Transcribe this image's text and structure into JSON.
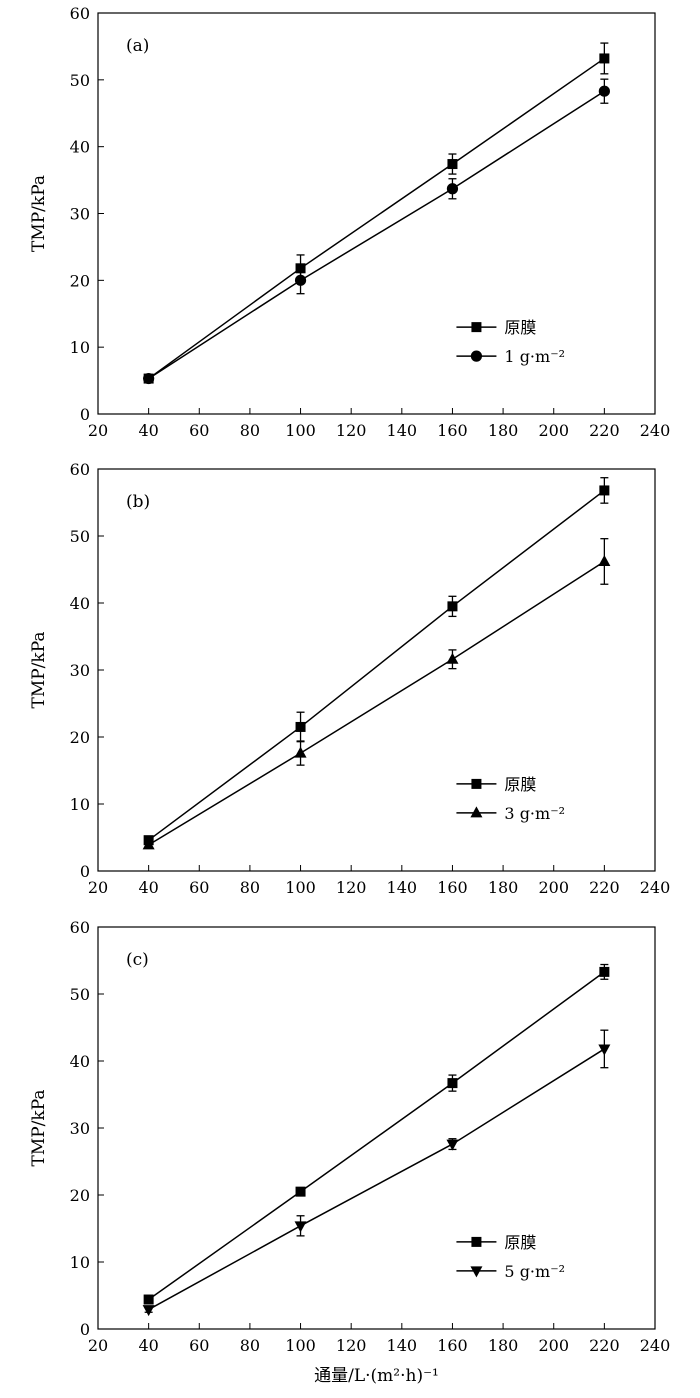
{
  "chart_data": [
    {
      "type": "line",
      "panel_label": "(a)",
      "xlabel": "",
      "ylabel": "TMP/kPa",
      "xlim": [
        20,
        240
      ],
      "ylim": [
        0,
        60
      ],
      "xticks": [
        20,
        40,
        60,
        80,
        100,
        120,
        140,
        160,
        180,
        200,
        220,
        240
      ],
      "yticks": [
        0,
        10,
        20,
        30,
        40,
        50,
        60
      ],
      "x": [
        40,
        100,
        160,
        220
      ],
      "legend_position": "bottom-right",
      "grid": false,
      "series": [
        {
          "name": "原膜",
          "marker": "square",
          "values": [
            5.3,
            21.8,
            37.4,
            53.2
          ],
          "errors": [
            0.5,
            2.0,
            1.5,
            2.3
          ]
        },
        {
          "name": "1 g·m⁻²",
          "marker": "circle",
          "values": [
            5.3,
            20.0,
            33.7,
            48.3
          ],
          "errors": [
            0.4,
            2.0,
            1.5,
            1.8
          ]
        }
      ]
    },
    {
      "type": "line",
      "panel_label": "(b)",
      "xlabel": "",
      "ylabel": "TMP/kPa",
      "xlim": [
        20,
        240
      ],
      "ylim": [
        0,
        60
      ],
      "xticks": [
        20,
        40,
        60,
        80,
        100,
        120,
        140,
        160,
        180,
        200,
        220,
        240
      ],
      "yticks": [
        0,
        10,
        20,
        30,
        40,
        50,
        60
      ],
      "x": [
        40,
        100,
        160,
        220
      ],
      "legend_position": "bottom-right",
      "grid": false,
      "series": [
        {
          "name": "原膜",
          "marker": "square",
          "values": [
            4.6,
            21.5,
            39.5,
            56.8
          ],
          "errors": [
            0.5,
            2.2,
            1.5,
            1.9
          ]
        },
        {
          "name": "3 g·m⁻²",
          "marker": "triangle-up",
          "values": [
            3.9,
            17.6,
            31.6,
            46.2
          ],
          "errors": [
            0.4,
            1.8,
            1.4,
            3.4
          ]
        }
      ]
    },
    {
      "type": "line",
      "panel_label": "(c)",
      "xlabel": "通量/L·(m²·h)⁻¹",
      "ylabel": "TMP/kPa",
      "xlim": [
        20,
        240
      ],
      "ylim": [
        0,
        60
      ],
      "xticks": [
        20,
        40,
        60,
        80,
        100,
        120,
        140,
        160,
        180,
        200,
        220,
        240
      ],
      "yticks": [
        0,
        10,
        20,
        30,
        40,
        50,
        60
      ],
      "x": [
        40,
        100,
        160,
        220
      ],
      "legend_position": "bottom-right",
      "grid": false,
      "series": [
        {
          "name": "原膜",
          "marker": "square",
          "values": [
            4.4,
            20.5,
            36.7,
            53.3
          ],
          "errors": [
            0.4,
            0.6,
            1.2,
            1.1
          ]
        },
        {
          "name": "5 g·m⁻²",
          "marker": "triangle-down",
          "values": [
            2.9,
            15.4,
            27.6,
            41.8
          ],
          "errors": [
            0.4,
            1.5,
            0.8,
            2.8
          ]
        }
      ]
    }
  ]
}
